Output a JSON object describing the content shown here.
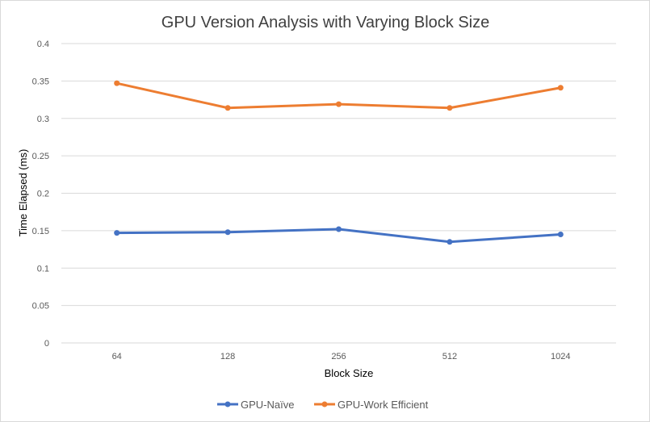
{
  "chart_data": {
    "type": "line",
    "title": "GPU Version Analysis with Varying Block Size",
    "xlabel": "Block Size",
    "ylabel": "Time Elapsed (ms)",
    "categories": [
      "64",
      "128",
      "256",
      "512",
      "1024"
    ],
    "ylim": [
      0,
      0.4
    ],
    "y_ticks": [
      "0",
      "0.05",
      "0.1",
      "0.15",
      "0.2",
      "0.25",
      "0.3",
      "0.35",
      "0.4"
    ],
    "y_tick_values": [
      0,
      0.05,
      0.1,
      0.15,
      0.2,
      0.25,
      0.3,
      0.35,
      0.4
    ],
    "grid": true,
    "legend_position": "bottom",
    "series": [
      {
        "name": "GPU-Naïve",
        "color": "#4472c4",
        "values": [
          0.147,
          0.148,
          0.152,
          0.135,
          0.145
        ]
      },
      {
        "name": "GPU-Work Efficient",
        "color": "#ed7d31",
        "values": [
          0.347,
          0.314,
          0.319,
          0.314,
          0.341
        ]
      }
    ]
  }
}
